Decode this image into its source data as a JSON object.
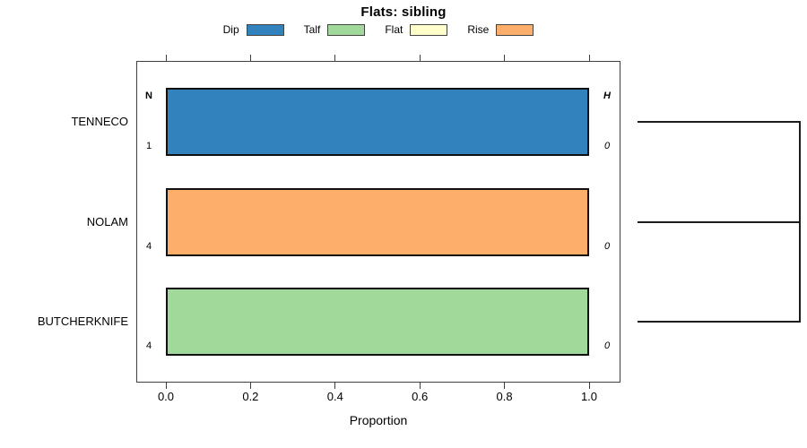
{
  "chart_data": {
    "type": "bar",
    "orientation": "horizontal",
    "stacked": true,
    "title": "Flats: sibling",
    "xlabel": "Proportion",
    "ylabel": "",
    "xlim": [
      0.0,
      1.0
    ],
    "xticks": [
      0.0,
      0.2,
      0.4,
      0.6,
      0.8,
      1.0
    ],
    "grid": false,
    "legend_position": "top",
    "categories": [
      "TENNECO",
      "NOLAM",
      "BUTCHERKNIFE"
    ],
    "series": [
      {
        "name": "Dip",
        "color": "#3182BD",
        "values": [
          1.0,
          0.0,
          0.0
        ]
      },
      {
        "name": "Talf",
        "color": "#A1D99B",
        "values": [
          0.0,
          0.0,
          1.0
        ]
      },
      {
        "name": "Flat",
        "color": "#FFFFCC",
        "values": [
          0.0,
          0.0,
          0.0
        ]
      },
      {
        "name": "Rise",
        "color": "#FDAE6B",
        "values": [
          0.0,
          1.0,
          0.0
        ]
      }
    ],
    "annotations": {
      "n_header": "N",
      "h_header": "H",
      "n_values": [
        1,
        4,
        4
      ],
      "h_values": [
        0,
        0,
        0
      ]
    },
    "dendrogram": {
      "present": true,
      "side": "right",
      "leaf_order": [
        "TENNECO",
        "NOLAM",
        "BUTCHERKNIFE"
      ],
      "structure": "all three leaves connect to a single vertical join at equal height"
    }
  }
}
